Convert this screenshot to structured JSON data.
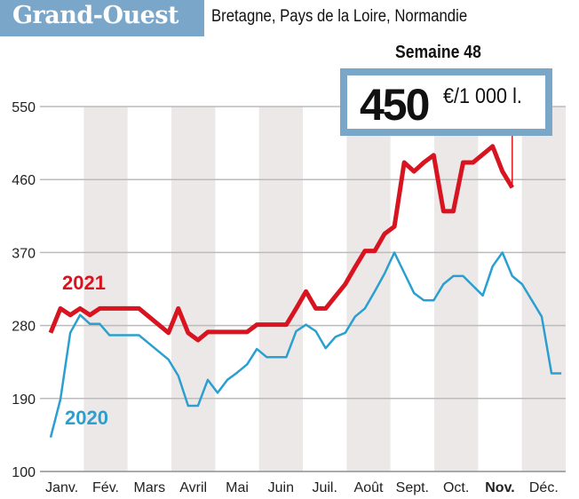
{
  "header": {
    "title": "Grand-Ouest",
    "subtitle": "Bretagne, Pays de la Loire, Normandie",
    "week_label": "Semaine 48",
    "current_value": "450",
    "current_unit": "€/1 000 l."
  },
  "colors": {
    "title_bg": "#7aa7c9",
    "box_border": "#7aa6c8",
    "series_2021": "#d7141f",
    "series_2020": "#2a9fd0",
    "band": "#ece8e8"
  },
  "chart_data": {
    "type": "line",
    "xlabel": "",
    "ylabel": "",
    "ylim": [
      100,
      550
    ],
    "yticks": [
      "550",
      "460",
      "370",
      "280",
      "190",
      "100"
    ],
    "ytick_values": [
      550,
      460,
      370,
      280,
      190,
      100
    ],
    "months": [
      "Janv.",
      "Fév.",
      "Mars",
      "Avril",
      "Mai",
      "Juin",
      "Juil.",
      "Août",
      "Sept.",
      "Oct.",
      "Nov.",
      "Déc."
    ],
    "highlighted_month": "Nov.",
    "grid": true,
    "series": [
      {
        "name": "2021",
        "values": [
          271,
          301,
          293,
          301,
          293,
          301,
          301,
          301,
          301,
          301,
          291,
          281,
          271,
          301,
          271,
          262,
          272,
          272,
          272,
          272,
          272,
          281,
          281,
          281,
          281,
          301,
          322,
          301,
          301,
          316,
          331,
          352,
          372,
          372,
          393,
          402,
          481,
          470,
          481,
          490,
          421,
          421,
          481,
          481,
          491,
          501,
          470,
          450
        ]
      },
      {
        "name": "2020",
        "values": [
          142,
          189,
          271,
          293,
          282,
          282,
          268,
          268,
          268,
          268,
          258,
          248,
          238,
          218,
          181,
          181,
          213,
          197,
          213,
          222,
          232,
          251,
          241,
          241,
          241,
          273,
          281,
          273,
          252,
          266,
          271,
          291,
          301,
          322,
          344,
          370,
          345,
          320,
          311,
          311,
          331,
          341,
          341,
          329,
          317,
          353,
          370,
          341,
          331,
          311,
          291,
          221,
          221
        ]
      }
    ]
  }
}
